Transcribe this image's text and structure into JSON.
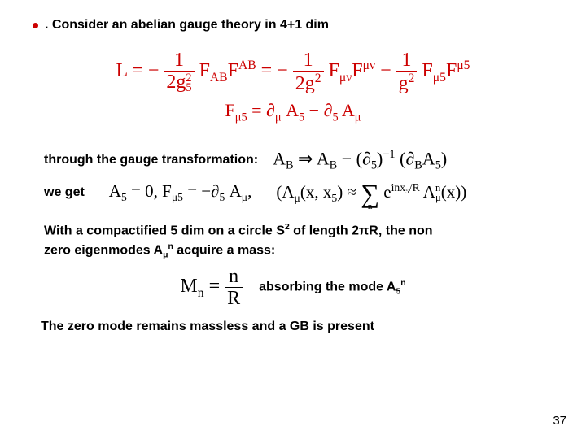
{
  "colors": {
    "bullet": "#cc0000",
    "heading_text": "#000000",
    "equation_main": "#cc0000",
    "equation_sub": "#000000",
    "body_text": "#000000",
    "background": "#ffffff"
  },
  "fonts": {
    "body": {
      "family": "Arial",
      "size_pt": 12,
      "weight": "bold"
    },
    "equation": {
      "family": "Times New Roman",
      "size_pt": 18
    }
  },
  "bullet": {
    "dot_glyph": "●",
    "text": ". Consider an abelian gauge theory in 4+1 dim"
  },
  "eq_main": {
    "L": "L = ",
    "minus": "−",
    "frac1_num": "1",
    "frac1_den": "2g",
    "frac1_den_sub": "5",
    "frac1_den_sup": "2",
    "F_AB": "F",
    "F_AB_sub": "AB",
    "F_AB_up": "F",
    "F_AB_up_sup": "AB",
    "eq": " = ",
    "frac2_num": "1",
    "frac2_den": "2g",
    "frac2_den_sup": "2",
    "F_text": "F",
    "F_munu_sub": "μν",
    "F_munu_sup": "μν",
    "frac3_num": "1",
    "frac3_den": "g",
    "frac3_den_sup": "2",
    "F_mu5_sub": "μ5",
    "F_mu5_sup": "μ5"
  },
  "eq_mu5": {
    "lhs": "F",
    "lhs_sub": "μ5",
    "eq": " = ",
    "d1": "∂",
    "d1_sub": "μ",
    "A5": "A",
    "A5_sub": "5",
    "minus": " − ",
    "d2": "∂",
    "d2_sub": "5",
    "Amu": "A",
    "Amu_sub": "μ"
  },
  "gauge": {
    "label": "through the gauge transformation:",
    "A_B": "A",
    "A_B_sub": "B",
    "arrow": " ⇒ ",
    "A_B2": "A",
    "A_B2_sub": "B",
    "minus": " − ",
    "lp": "(",
    "d5": "∂",
    "d5_sub": "5",
    "rp": ")",
    "inv_sup": "−1",
    "lp2": "(",
    "dB": "∂",
    "dB_sub": "B",
    "A5": "A",
    "A5_sub": "5",
    "rp2": ")"
  },
  "weget": {
    "label": "we get",
    "A5": "A",
    "A5_sub": "5",
    "eq0": " = 0,  ",
    "Fmu5": "F",
    "Fmu5_sub": "μ5",
    "eq_neg_d5": " = −∂",
    "d5_sub": "5",
    "Amu": "A",
    "Amu_sub": "μ",
    "comma1": ",",
    "open": "(",
    "A_mu_x": "A",
    "A_mu_x_sub": "μ",
    "args": "(x, x",
    "args_sub": "5",
    "args_close": ") ≈ ",
    "sum": "∑",
    "sum_sub": "n",
    "e": "e",
    "e_sup": "inx₅/R",
    "Amun": "A",
    "Amun_sub": "μ",
    "Amun_sup": "n",
    "xclose": "(x))"
  },
  "compact": {
    "line1_a": "With a compactified 5 dim on a circle S",
    "line1_sup": "2",
    "line1_b": " of length 2",
    "pi": "π",
    "line1_c": "R, the non",
    "line2_a": "zero eigenmodes  A",
    "line2_sub": "μ",
    "line2_sup": "n",
    "line2_b": " acquire a mass:"
  },
  "mass": {
    "M": "M",
    "M_sub": "n",
    "eq": " = ",
    "frac_num": "n",
    "frac_den": "R",
    "text_a": "absorbing the mode A",
    "text_sub": "5",
    "text_sup": "n"
  },
  "zero_mode": "The zero mode remains massless and a GB is present",
  "page_number": "37"
}
